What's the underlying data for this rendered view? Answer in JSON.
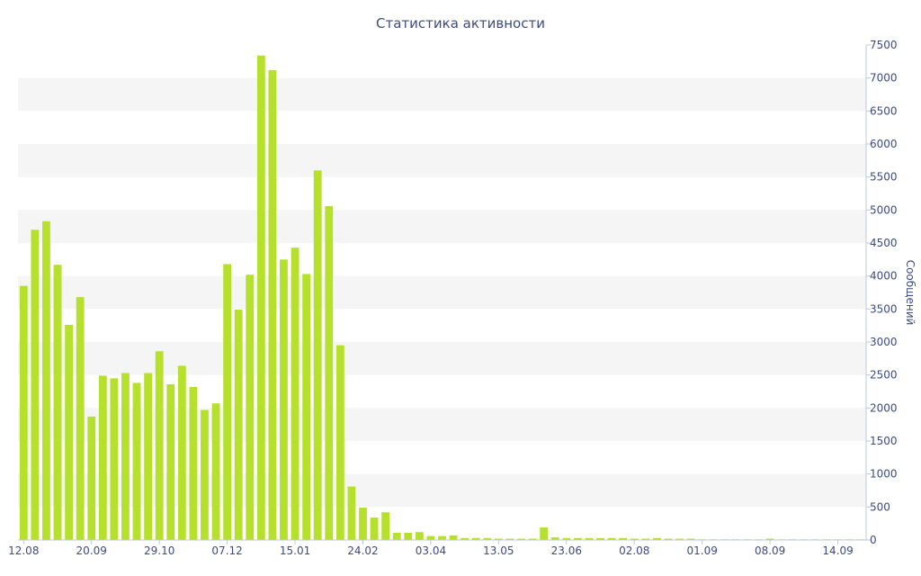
{
  "chart_data": {
    "type": "bar",
    "title": "Статистика активности",
    "xlabel": "",
    "ylabel": "Сообщений",
    "ylim": [
      0,
      7500
    ],
    "y_axis_side": "right",
    "y_ticks": [
      0,
      500,
      1000,
      1500,
      2000,
      2500,
      3000,
      3500,
      4000,
      4500,
      5000,
      5500,
      6000,
      6500,
      7000,
      7500
    ],
    "grid": "alternating horizontal bands",
    "bar_color": "#b5e02b",
    "axis_text_color": "#3d4b82",
    "band_color": "#f5f5f5",
    "x_tick_labels": [
      {
        "label": "12.08",
        "index": 0
      },
      {
        "label": "20.09",
        "index": 6
      },
      {
        "label": "29.10",
        "index": 12
      },
      {
        "label": "07.12",
        "index": 18
      },
      {
        "label": "15.01",
        "index": 24
      },
      {
        "label": "24.02",
        "index": 30
      },
      {
        "label": "03.04",
        "index": 36
      },
      {
        "label": "13.05",
        "index": 42
      },
      {
        "label": "23.06",
        "index": 48
      },
      {
        "label": "02.08",
        "index": 54
      },
      {
        "label": "01.09",
        "index": 60
      },
      {
        "label": "08.09",
        "index": 66
      },
      {
        "label": "14.09",
        "index": 72
      }
    ],
    "values": [
      3850,
      4700,
      4830,
      4170,
      3260,
      3680,
      1870,
      2490,
      2450,
      2530,
      2380,
      2530,
      2860,
      2360,
      2640,
      2320,
      1970,
      2070,
      4180,
      3490,
      4020,
      7340,
      7120,
      4250,
      4430,
      4030,
      5600,
      5060,
      2950,
      810,
      490,
      340,
      420,
      110,
      110,
      120,
      60,
      60,
      70,
      30,
      30,
      30,
      20,
      20,
      20,
      20,
      190,
      40,
      30,
      30,
      30,
      30,
      30,
      30,
      20,
      20,
      30,
      20,
      20,
      20,
      10,
      10,
      10,
      10,
      10,
      10,
      20,
      10,
      10,
      10,
      10,
      10,
      10,
      10,
      10
    ]
  }
}
